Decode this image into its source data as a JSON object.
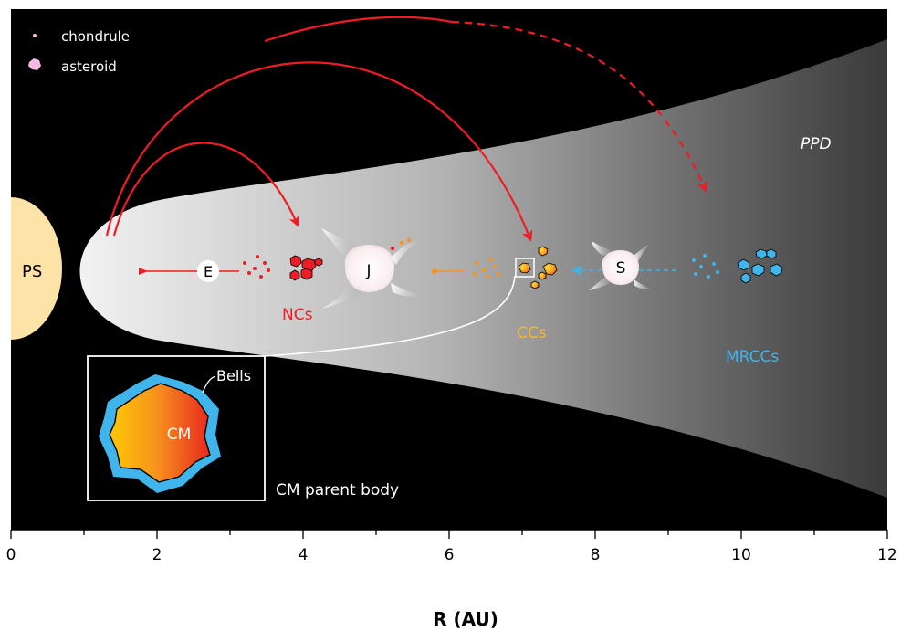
{
  "legend": {
    "chondrule_label": "chondrule",
    "asteroid_label": "asteroid"
  },
  "labels": {
    "star": "PS",
    "disk": "PPD",
    "earth": "E",
    "jupiter": "J",
    "saturn": "S",
    "ncs": "NCs",
    "ccs": "CCs",
    "mrccs": "MRCCs",
    "inset_core": "CM",
    "inset_rim": "Bells",
    "inset_caption": "CM parent body"
  },
  "axis": {
    "label": "R (AU)",
    "range": [
      0,
      12
    ],
    "major_ticks": [
      "0",
      "2",
      "4",
      "6",
      "8",
      "10",
      "12"
    ],
    "minor_step": 1
  },
  "colors": {
    "background": "#000000",
    "star": "#fde3a7",
    "nc": "#ee1c25",
    "cc": "#f7941d",
    "mrcc": "#3fb5ec",
    "arrow_red": "#ee1c25",
    "planet": "#fdeef0",
    "label_nc": "#ee1c25",
    "label_cc": "#f7b733",
    "label_mrcc": "#3fb5ec"
  }
}
